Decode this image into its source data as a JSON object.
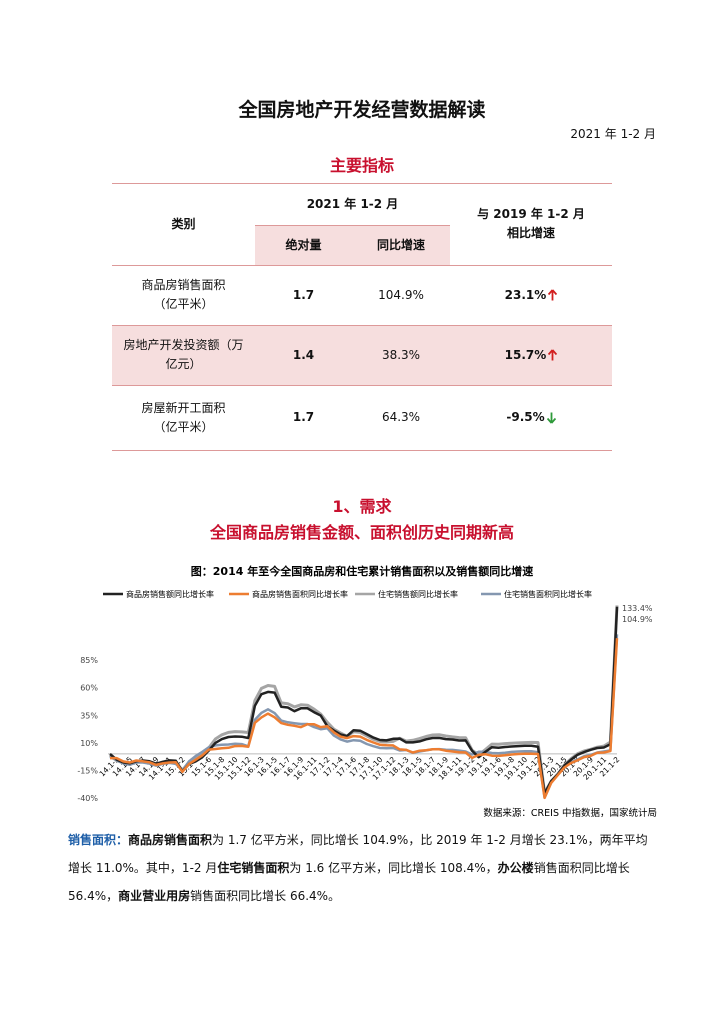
{
  "header": {
    "title": "全国房地产开发经营数据解读",
    "date": "2021 年 1-2 月"
  },
  "section1": {
    "title": "主要指标"
  },
  "table": {
    "header": {
      "category": "类别",
      "period": "2021 年 1-2 月",
      "absolute": "绝对量",
      "yoy": "同比增速",
      "compare": "与 2019 年 1-2 月",
      "compare_sub": "相比增速"
    },
    "rows": [
      {
        "category": [
          "商品房销售面积",
          "（亿平米）"
        ],
        "absolute": "1.7",
        "yoy": "104.9%",
        "compare": "23.1%",
        "direction": "up",
        "shaded": false
      },
      {
        "category": [
          "房地产开发投资额（万",
          "亿元）"
        ],
        "absolute": "1.4",
        "yoy": "38.3%",
        "compare": "15.7%",
        "direction": "up",
        "shaded": true
      },
      {
        "category": [
          "房屋新开工面积",
          "（亿平米）"
        ],
        "absolute": "1.7",
        "yoy": "64.3%",
        "compare": "-9.5%",
        "direction": "down",
        "shaded": false
      }
    ]
  },
  "section2": {
    "title": "1、需求",
    "subtitle": "全国商品房销售金额、面积创历史同期新高"
  },
  "chart_data": {
    "type": "line",
    "title": "图：2014 年至今全国商品房和住宅累计销售面积以及销售额同比增速",
    "categories": [
      null,
      "14.1-3",
      null,
      "14.1-5",
      null,
      "14.1-7",
      null,
      "14.1-9",
      null,
      "14.1-11",
      null,
      "15.1-2",
      null,
      "15.1-4",
      null,
      "15.1-6",
      null,
      "15.1-8",
      null,
      "15.1-10",
      null,
      "15.1-12",
      null,
      "16.1-3",
      null,
      "16.1-5",
      null,
      "16.1-7",
      null,
      "16.1-9",
      null,
      "16.1-11",
      null,
      "17.1-2",
      null,
      "17.1-4",
      null,
      "17.1-6",
      null,
      "17.1-8",
      null,
      "17.1-10",
      null,
      "17.1-12",
      null,
      "18.1-3",
      null,
      "18.1-5",
      null,
      "18.1-7",
      null,
      "18.1-9",
      null,
      "18.1-11",
      null,
      "19.1-2",
      null,
      "19.1-4",
      null,
      "19.1-6",
      null,
      "19.1-8",
      null,
      "19.1-10",
      null,
      "19.1-12",
      null,
      "20.1-3",
      null,
      "20.1-5",
      null,
      "20.1-7",
      null,
      "20.1-9",
      null,
      "20.1-11",
      null,
      "21.1-2"
    ],
    "series": [
      {
        "name": "住宅销售额同比增长率",
        "color": "#a5a5a5",
        "width": 3,
        "values": [
          -1.5,
          -6.1,
          -8.1,
          -9.2,
          -7.6,
          -7.1,
          -8.2,
          -10.0,
          -8.5,
          -7.1,
          -7.8,
          -14.8,
          -7.6,
          -3.5,
          0.2,
          5.4,
          13.5,
          17.3,
          19.5,
          20.2,
          19.9,
          19.4,
          48.3,
          59.4,
          62.0,
          61.2,
          46.2,
          45.5,
          42.6,
          44.5,
          44.1,
          40.5,
          36.1,
          28.6,
          22.4,
          19.0,
          16.0,
          20.1,
          19.5,
          16.3,
          13.2,
          11.2,
          10.8,
          11.3,
          14.2,
          11.6,
          12.3,
          13.9,
          15.8,
          17.1,
          17.4,
          16.2,
          15.4,
          14.8,
          14.7,
          3.3,
          -0.9,
          3.8,
          8.9,
          8.7,
          9.3,
          9.7,
          10.0,
          10.2,
          10.4,
          10.3,
          -35.2,
          -24.9,
          -18.4,
          -10.1,
          -4.5,
          0.1,
          2.6,
          4.2,
          6.1,
          7.1,
          10.8,
          134.6
        ]
      },
      {
        "name": "住宅销售面积同比增长率",
        "color": "#8497b0",
        "width": 2.5,
        "values": [
          -2.7,
          -5.7,
          -8.6,
          -9.9,
          -7.8,
          -7.8,
          -8.9,
          -10.7,
          -9.1,
          -8.2,
          -9.1,
          -15.2,
          -6.8,
          -2.0,
          1.8,
          6.0,
          7.7,
          8.3,
          8.5,
          9.1,
          8.9,
          6.9,
          30.9,
          37.2,
          40.4,
          37.0,
          30.2,
          28.6,
          27.8,
          27.1,
          27.1,
          24.3,
          22.4,
          23.2,
          16.6,
          13.1,
          11.1,
          12.4,
          11.9,
          9.0,
          7.0,
          5.3,
          5.1,
          5.3,
          3.1,
          3.5,
          1.0,
          2.2,
          3.2,
          4.2,
          4.3,
          3.7,
          3.6,
          3.0,
          2.2,
          -0.6,
          1.9,
          1.9,
          0.8,
          0.5,
          1.0,
          1.8,
          2.2,
          2.4,
          2.4,
          1.5,
          -39.6,
          -25.9,
          -18.8,
          -11.8,
          -7.6,
          -5.1,
          -2.2,
          -0.9,
          1.3,
          2.2,
          3.2,
          108.4
        ]
      },
      {
        "name": "商品房销售额同比增长率",
        "color": "#222222",
        "width": 2.5,
        "values": [
          -0.1,
          -5.2,
          -7.7,
          -8.5,
          -6.7,
          -6.0,
          -6.7,
          -8.9,
          -7.2,
          -5.9,
          -6.3,
          -15.8,
          -9.3,
          -6.9,
          -3.1,
          3.1,
          10.0,
          13.4,
          15.3,
          15.8,
          15.6,
          14.4,
          43.6,
          54.1,
          56.2,
          55.6,
          42.8,
          42.1,
          38.7,
          41.3,
          41.3,
          37.8,
          34.8,
          25.1,
          21.1,
          17.6,
          16.1,
          21.5,
          21.0,
          17.9,
          14.8,
          12.6,
          12.2,
          13.7,
          13.9,
          10.4,
          10.4,
          11.3,
          13.2,
          14.4,
          14.5,
          13.4,
          13.0,
          12.1,
          12.2,
          2.8,
          -3.0,
          1.8,
          6.1,
          5.6,
          6.2,
          6.7,
          7.1,
          7.3,
          7.3,
          6.5,
          -35.9,
          -24.7,
          -18.6,
          -10.6,
          -5.4,
          -0.8,
          1.6,
          3.7,
          5.3,
          5.8,
          8.7,
          133.4
        ],
        "value_labels": [
          null,
          null,
          null,
          null,
          null,
          null,
          null,
          null,
          null,
          null,
          null,
          null,
          null,
          null,
          null,
          null,
          null,
          null,
          null,
          null,
          null,
          null,
          null,
          null,
          null,
          null,
          null,
          null,
          null,
          null,
          null,
          null,
          null,
          null,
          null,
          null,
          null,
          null,
          null,
          null,
          null,
          null,
          null,
          null,
          null,
          null,
          null,
          null,
          null,
          null,
          null,
          null,
          null,
          null,
          null,
          null,
          null,
          null,
          null,
          null,
          null,
          null,
          null,
          null,
          null,
          null,
          null,
          null,
          null,
          null,
          null,
          null,
          null,
          null,
          null,
          null,
          null,
          "133.4%"
        ]
      },
      {
        "name": "商品房销售面积同比增长率",
        "color": "#ed7d31",
        "width": 2.5,
        "values": [
          -3.8,
          -3.8,
          -6.8,
          -7.8,
          -6.0,
          -6.7,
          -7.6,
          -10.0,
          -8.6,
          -7.8,
          -7.6,
          -16.2,
          -9.2,
          -5.4,
          -1.4,
          3.9,
          4.4,
          5.1,
          5.5,
          7.1,
          7.2,
          6.5,
          28.2,
          33.1,
          36.5,
          33.2,
          27.9,
          26.4,
          25.5,
          24.3,
          26.9,
          26.8,
          24.3,
          25.1,
          19.5,
          15.7,
          14.3,
          16.1,
          15.7,
          12.7,
          10.3,
          8.2,
          7.9,
          7.7,
          4.1,
          3.6,
          1.3,
          2.9,
          3.3,
          4.2,
          4.2,
          2.9,
          2.2,
          1.4,
          1.3,
          -3.6,
          -0.9,
          -0.3,
          -1.6,
          -1.8,
          -1.3,
          -0.6,
          -0.1,
          0.1,
          0.2,
          -0.1,
          -39.9,
          -26.3,
          -19.3,
          -12.3,
          -8.4,
          -5.8,
          -2.9,
          -1.8,
          1.0,
          1.3,
          2.6,
          104.9
        ],
        "value_labels": [
          null,
          null,
          null,
          null,
          null,
          null,
          null,
          null,
          null,
          null,
          null,
          null,
          null,
          null,
          null,
          null,
          null,
          null,
          null,
          null,
          null,
          null,
          null,
          null,
          null,
          null,
          null,
          null,
          null,
          null,
          null,
          null,
          null,
          null,
          null,
          null,
          null,
          null,
          null,
          null,
          null,
          null,
          null,
          null,
          null,
          null,
          null,
          null,
          null,
          null,
          null,
          null,
          null,
          null,
          null,
          null,
          null,
          null,
          null,
          null,
          null,
          null,
          null,
          null,
          null,
          null,
          null,
          null,
          null,
          null,
          null,
          null,
          null,
          null,
          null,
          null,
          null,
          "104.9%"
        ]
      }
    ],
    "legend_order": [
      2,
      3,
      0,
      1
    ],
    "ylim": [
      -40,
      135
    ],
    "yticks": [
      {
        "value": -40,
        "label": "-40%"
      },
      {
        "value": -15,
        "label": "-15%"
      },
      {
        "value": 10,
        "label": "10%"
      },
      {
        "value": 35,
        "label": "35%"
      },
      {
        "value": 60,
        "label": "60%"
      },
      {
        "value": 85,
        "label": "85%"
      }
    ],
    "grid": false,
    "source": "数据来源：CREIS 中指数据，国家统计局"
  },
  "paragraph": [
    {
      "text": "销售面积：",
      "style": "label"
    },
    {
      "text": "商品房销售面积",
      "style": "bold"
    },
    {
      "text": "为 1.7 亿平方米，同比增长 104.9%，比 2019 年 1-2 月增长 23.1%，两年平均增长 11.0%。其中，1-2 月",
      "style": "plain"
    },
    {
      "text": "住宅销售面积",
      "style": "bold"
    },
    {
      "text": "为 1.6 亿平方米，同比增长 108.4%，",
      "style": "plain"
    },
    {
      "text": "办公楼",
      "style": "bold"
    },
    {
      "text": "销售面积同比增长 56.4%，",
      "style": "plain"
    },
    {
      "text": "商业营业用房",
      "style": "bold"
    },
    {
      "text": "销售面积同比增长 66.4%。",
      "style": "plain"
    }
  ]
}
